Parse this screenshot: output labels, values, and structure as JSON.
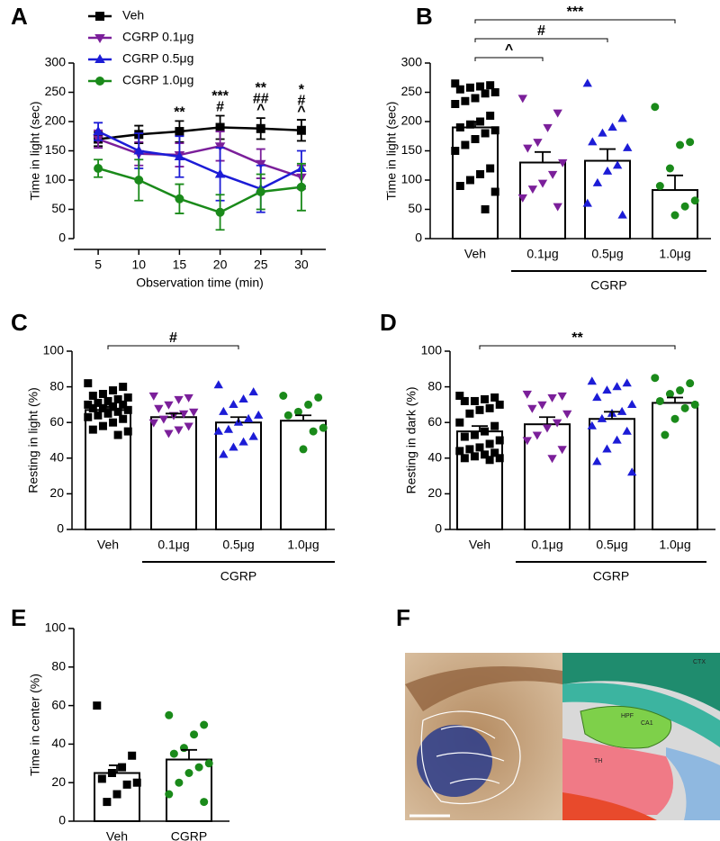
{
  "chart_data": [
    {
      "type": "line",
      "panel": "A",
      "x": [
        5,
        10,
        15,
        20,
        25,
        30
      ],
      "xlim": [
        2,
        33
      ],
      "xticks": [
        5,
        10,
        15,
        20,
        25,
        30
      ],
      "ylim": [
        0,
        300
      ],
      "yticks": [
        0,
        50,
        100,
        150,
        200,
        250,
        300
      ],
      "x_label": "Observation time (min)",
      "y_label": "Time in light (sec)",
      "series": [
        {
          "name": "Veh",
          "color": "#000000",
          "marker": "square",
          "values": [
            170,
            178,
            183,
            190,
            188,
            185
          ],
          "errors": [
            12,
            15,
            18,
            20,
            18,
            18
          ]
        },
        {
          "name": "CGRP 0.1μg",
          "color": "#7b1f9a",
          "marker": "triangle-down",
          "values": [
            170,
            145,
            143,
            158,
            128,
            105
          ],
          "errors": [
            15,
            20,
            20,
            25,
            25,
            20
          ]
        },
        {
          "name": "CGRP 0.5μg",
          "color": "#1c1cd6",
          "marker": "triangle-up",
          "values": [
            183,
            150,
            140,
            110,
            85,
            120
          ],
          "errors": [
            15,
            30,
            35,
            45,
            40,
            30
          ]
        },
        {
          "name": "CGRP 1.0μg",
          "color": "#1a8a1a",
          "marker": "circle",
          "values": [
            120,
            100,
            68,
            45,
            80,
            88
          ],
          "errors": [
            15,
            35,
            25,
            30,
            30,
            40
          ]
        }
      ],
      "annotations": [
        {
          "x": 15,
          "texts": [
            "**"
          ]
        },
        {
          "x": 20,
          "texts": [
            "***",
            "#"
          ]
        },
        {
          "x": 25,
          "texts": [
            "**",
            "##",
            "^"
          ]
        },
        {
          "x": 30,
          "texts": [
            "*",
            "#",
            "^"
          ]
        }
      ]
    },
    {
      "type": "bar",
      "panel": "B",
      "categories": [
        "Veh",
        "0.1μg",
        "0.5μg",
        "1.0μg"
      ],
      "values": [
        190,
        130,
        133,
        83
      ],
      "errors": [
        10,
        18,
        20,
        25
      ],
      "colors": [
        "#000000",
        "#7b1f9a",
        "#1c1cd6",
        "#1a8a1a"
      ],
      "markers": [
        "square",
        "triangle-down",
        "triangle-up",
        "circle"
      ],
      "points": [
        [
          265,
          262,
          260,
          258,
          255,
          250,
          248,
          240,
          235,
          230,
          210,
          200,
          195,
          190,
          185,
          180,
          170,
          160,
          150,
          120,
          110,
          100,
          90,
          80,
          50
        ],
        [
          240,
          215,
          190,
          165,
          155,
          130,
          110,
          95,
          85,
          70,
          55
        ],
        [
          265,
          205,
          190,
          180,
          165,
          155,
          125,
          115,
          95,
          60,
          40
        ],
        [
          225,
          165,
          160,
          120,
          90,
          65,
          55,
          40
        ]
      ],
      "ylim": [
        0,
        300
      ],
      "yticks": [
        0,
        50,
        100,
        150,
        200,
        250,
        300
      ],
      "y_label": "Time in light (sec)",
      "group_label": "CGRP",
      "group_span": [
        1,
        3
      ],
      "brackets": [
        {
          "from": 0,
          "to": 1,
          "label": "^"
        },
        {
          "from": 0,
          "to": 2,
          "label": "#"
        },
        {
          "from": 0,
          "to": 3,
          "label": "***"
        }
      ]
    },
    {
      "type": "bar",
      "panel": "C",
      "categories": [
        "Veh",
        "0.1μg",
        "0.5μg",
        "1.0μg"
      ],
      "values": [
        67,
        63,
        60,
        61
      ],
      "errors": [
        2,
        2,
        3,
        3
      ],
      "colors": [
        "#000000",
        "#7b1f9a",
        "#1c1cd6",
        "#1a8a1a"
      ],
      "markers": [
        "square",
        "triangle-down",
        "triangle-up",
        "circle"
      ],
      "points": [
        [
          82,
          80,
          78,
          76,
          75,
          74,
          73,
          72,
          71,
          70,
          70,
          69,
          68,
          68,
          67,
          66,
          65,
          64,
          63,
          62,
          60,
          58,
          56,
          55,
          53
        ],
        [
          75,
          74,
          73,
          70,
          68,
          66,
          65,
          64,
          62,
          60,
          58,
          56,
          54
        ],
        [
          81,
          77,
          73,
          70,
          66,
          64,
          62,
          60,
          56,
          55,
          52,
          49,
          46,
          42
        ],
        [
          75,
          74,
          70,
          66,
          64,
          57,
          55,
          45
        ]
      ],
      "ylim": [
        0,
        100
      ],
      "yticks": [
        0,
        20,
        40,
        60,
        80,
        100
      ],
      "y_label": "Resting in light (%)",
      "group_label": "CGRP",
      "group_span": [
        1,
        3
      ],
      "brackets": [
        {
          "from": 0,
          "to": 2,
          "label": "#"
        }
      ]
    },
    {
      "type": "bar",
      "panel": "D",
      "categories": [
        "Veh",
        "0.1μg",
        "0.5μg",
        "1.0μg"
      ],
      "values": [
        55,
        59,
        62,
        71
      ],
      "errors": [
        3,
        4,
        4,
        3
      ],
      "colors": [
        "#000000",
        "#7b1f9a",
        "#1c1cd6",
        "#1a8a1a"
      ],
      "markers": [
        "square",
        "triangle-down",
        "triangle-up",
        "circle"
      ],
      "points": [
        [
          75,
          74,
          73,
          72,
          72,
          70,
          68,
          67,
          65,
          60,
          58,
          55,
          53,
          52,
          50,
          48,
          46,
          45,
          44,
          43,
          42,
          41,
          40,
          40,
          39
        ],
        [
          76,
          75,
          74,
          70,
          68,
          65,
          60,
          57,
          53,
          50,
          45,
          40
        ],
        [
          83,
          82,
          80,
          78,
          74,
          70,
          66,
          65,
          62,
          58,
          55,
          50,
          45,
          38,
          32
        ],
        [
          85,
          82,
          78,
          76,
          72,
          70,
          68,
          62,
          53
        ]
      ],
      "ylim": [
        0,
        100
      ],
      "yticks": [
        0,
        20,
        40,
        60,
        80,
        100
      ],
      "y_label": "Resting in dark (%)",
      "group_label": "CGRP",
      "group_span": [
        1,
        3
      ],
      "brackets": [
        {
          "from": 0,
          "to": 3,
          "label": "**"
        }
      ]
    },
    {
      "type": "bar",
      "panel": "E",
      "categories": [
        "Veh",
        "CGRP"
      ],
      "values": [
        25,
        32
      ],
      "errors": [
        4,
        5
      ],
      "colors": [
        "#000000",
        "#1a8a1a"
      ],
      "markers": [
        "square",
        "circle"
      ],
      "points": [
        [
          60,
          34,
          28,
          25,
          22,
          20,
          19,
          14,
          10
        ],
        [
          55,
          50,
          45,
          38,
          35,
          30,
          28,
          25,
          20,
          14,
          10
        ]
      ],
      "ylim": [
        0,
        100
      ],
      "yticks": [
        0,
        20,
        40,
        60,
        80,
        100
      ],
      "y_label": "Time in center (%)"
    }
  ],
  "figure_f": {
    "panel": "F",
    "atlas_labels": [
      "CTX",
      "HPF",
      "CA1",
      "TH"
    ]
  }
}
